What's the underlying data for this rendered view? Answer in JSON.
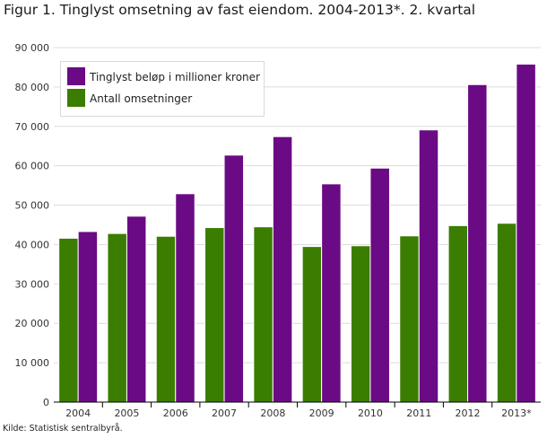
{
  "title": "Figur 1. Tinglyst omsetning av fast eiendom. 2004-2013*. 2. kvartal",
  "source": "Kilde: Statistisk sentralbyrå.",
  "chart_data": {
    "type": "bar",
    "categories": [
      "2004",
      "2005",
      "2006",
      "2007",
      "2008",
      "2009",
      "2010",
      "2011",
      "2012",
      "2013*"
    ],
    "series": [
      {
        "name": "Antall omsetninger",
        "color": "#3a7d00",
        "values": [
          41600,
          42800,
          42100,
          44300,
          44500,
          39500,
          39700,
          42200,
          44800,
          45400
        ]
      },
      {
        "name": "Tinglyst beløp i millioner kroner",
        "color": "#6b0a85",
        "values": [
          43300,
          47200,
          52900,
          62700,
          67400,
          55400,
          59400,
          69100,
          80600,
          85800
        ]
      }
    ],
    "ylim": [
      0,
      90000
    ],
    "yticks": [
      0,
      10000,
      20000,
      30000,
      40000,
      50000,
      60000,
      70000,
      80000,
      90000
    ],
    "ytick_labels": [
      "0",
      "10 000",
      "20 000",
      "30 000",
      "40 000",
      "50 000",
      "60 000",
      "70 000",
      "80 000",
      "90 000"
    ],
    "grid": true,
    "legend_position": "top-left",
    "legend_order": [
      1,
      0
    ]
  }
}
